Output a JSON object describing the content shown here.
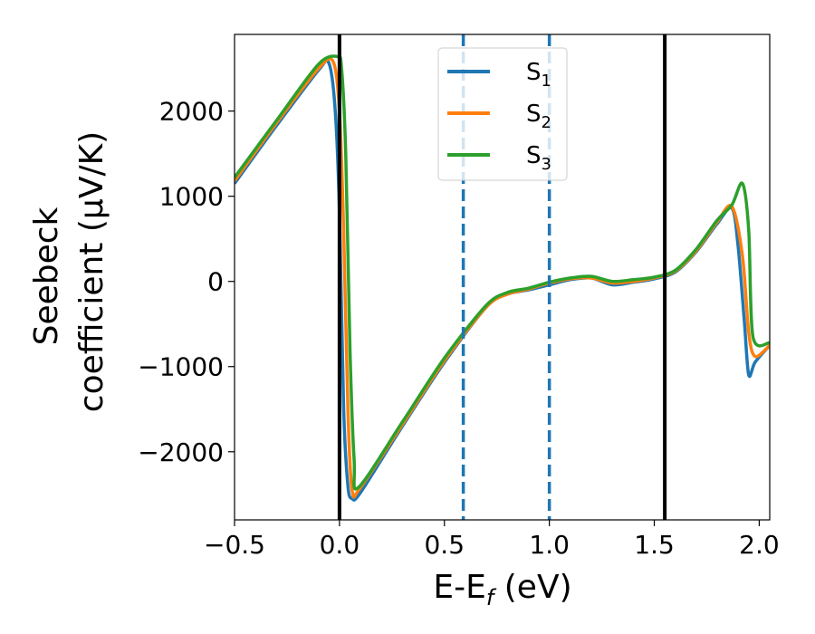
{
  "chart_data": {
    "type": "line",
    "xlabel": {
      "base": "E-E",
      "sub": "f",
      "suffix": " (eV)"
    },
    "ylabel": {
      "line1": "Seebeck",
      "line2": "coefficient  (μV/K)"
    },
    "xlim": [
      -0.5,
      2.05
    ],
    "ylim": [
      -2800,
      2900
    ],
    "xticks": [
      -0.5,
      0.0,
      0.5,
      1.0,
      1.5,
      2.0
    ],
    "xtick_labels": [
      "−0.5",
      "0.0",
      "0.5",
      "1.0",
      "1.5",
      "2.0"
    ],
    "yticks": [
      -2000,
      -1000,
      0,
      1000,
      2000
    ],
    "ytick_labels": [
      "−2000",
      "−1000",
      "0",
      "1000",
      "2000"
    ],
    "vlines": [
      {
        "x": 0.0,
        "style": "solid",
        "color": "#000000"
      },
      {
        "x": 1.55,
        "style": "solid",
        "color": "#000000"
      },
      {
        "x": 0.59,
        "style": "dashed",
        "color": "#1f77b4"
      },
      {
        "x": 1.0,
        "style": "dashed",
        "color": "#1f77b4"
      }
    ],
    "legend_position": "top-center",
    "series": [
      {
        "name": "S",
        "sub": "1",
        "color": "#1f77b4",
        "x": [
          -0.5,
          -0.3,
          -0.1,
          -0.05,
          -0.02,
          0.0,
          0.02,
          0.04,
          0.06,
          0.1,
          0.3,
          0.5,
          0.7,
          0.8,
          0.9,
          1.0,
          1.1,
          1.2,
          1.3,
          1.4,
          1.5,
          1.6,
          1.7,
          1.8,
          1.87,
          1.9,
          1.93,
          1.95,
          1.98,
          2.05
        ],
        "y": [
          1150,
          1830,
          2480,
          2560,
          2000,
          800,
          -1500,
          -2400,
          -2550,
          -2480,
          -1700,
          -950,
          -300,
          -150,
          -100,
          -40,
          20,
          40,
          -40,
          -10,
          30,
          110,
          350,
          680,
          860,
          400,
          -500,
          -1100,
          -950,
          -750
        ]
      },
      {
        "name": "S",
        "sub": "2",
        "color": "#ff7f0e",
        "x": [
          -0.5,
          -0.3,
          -0.1,
          -0.03,
          0.0,
          0.02,
          0.04,
          0.06,
          0.1,
          0.3,
          0.5,
          0.7,
          0.8,
          0.9,
          1.0,
          1.1,
          1.2,
          1.3,
          1.4,
          1.5,
          1.6,
          1.7,
          1.8,
          1.87,
          1.92,
          1.95,
          1.98,
          2.05
        ],
        "y": [
          1180,
          1860,
          2500,
          2580,
          2000,
          600,
          -1500,
          -2450,
          -2420,
          -1680,
          -930,
          -300,
          -150,
          -90,
          -20,
          30,
          40,
          -20,
          0,
          40,
          120,
          360,
          700,
          880,
          300,
          -600,
          -880,
          -750
        ]
      },
      {
        "name": "S",
        "sub": "3",
        "color": "#2ca02c",
        "x": [
          -0.5,
          -0.3,
          -0.1,
          -0.01,
          0.01,
          0.03,
          0.05,
          0.07,
          0.09,
          0.3,
          0.5,
          0.7,
          0.8,
          0.9,
          1.0,
          1.1,
          1.2,
          1.3,
          1.4,
          1.5,
          1.6,
          1.7,
          1.8,
          1.87,
          1.92,
          1.95,
          1.97,
          2.05
        ],
        "y": [
          1220,
          1890,
          2550,
          2640,
          2500,
          1500,
          -800,
          -2100,
          -2420,
          -1650,
          -900,
          -280,
          -130,
          -80,
          -10,
          40,
          60,
          0,
          20,
          50,
          130,
          380,
          720,
          900,
          1150,
          600,
          -650,
          -720
        ]
      }
    ]
  }
}
